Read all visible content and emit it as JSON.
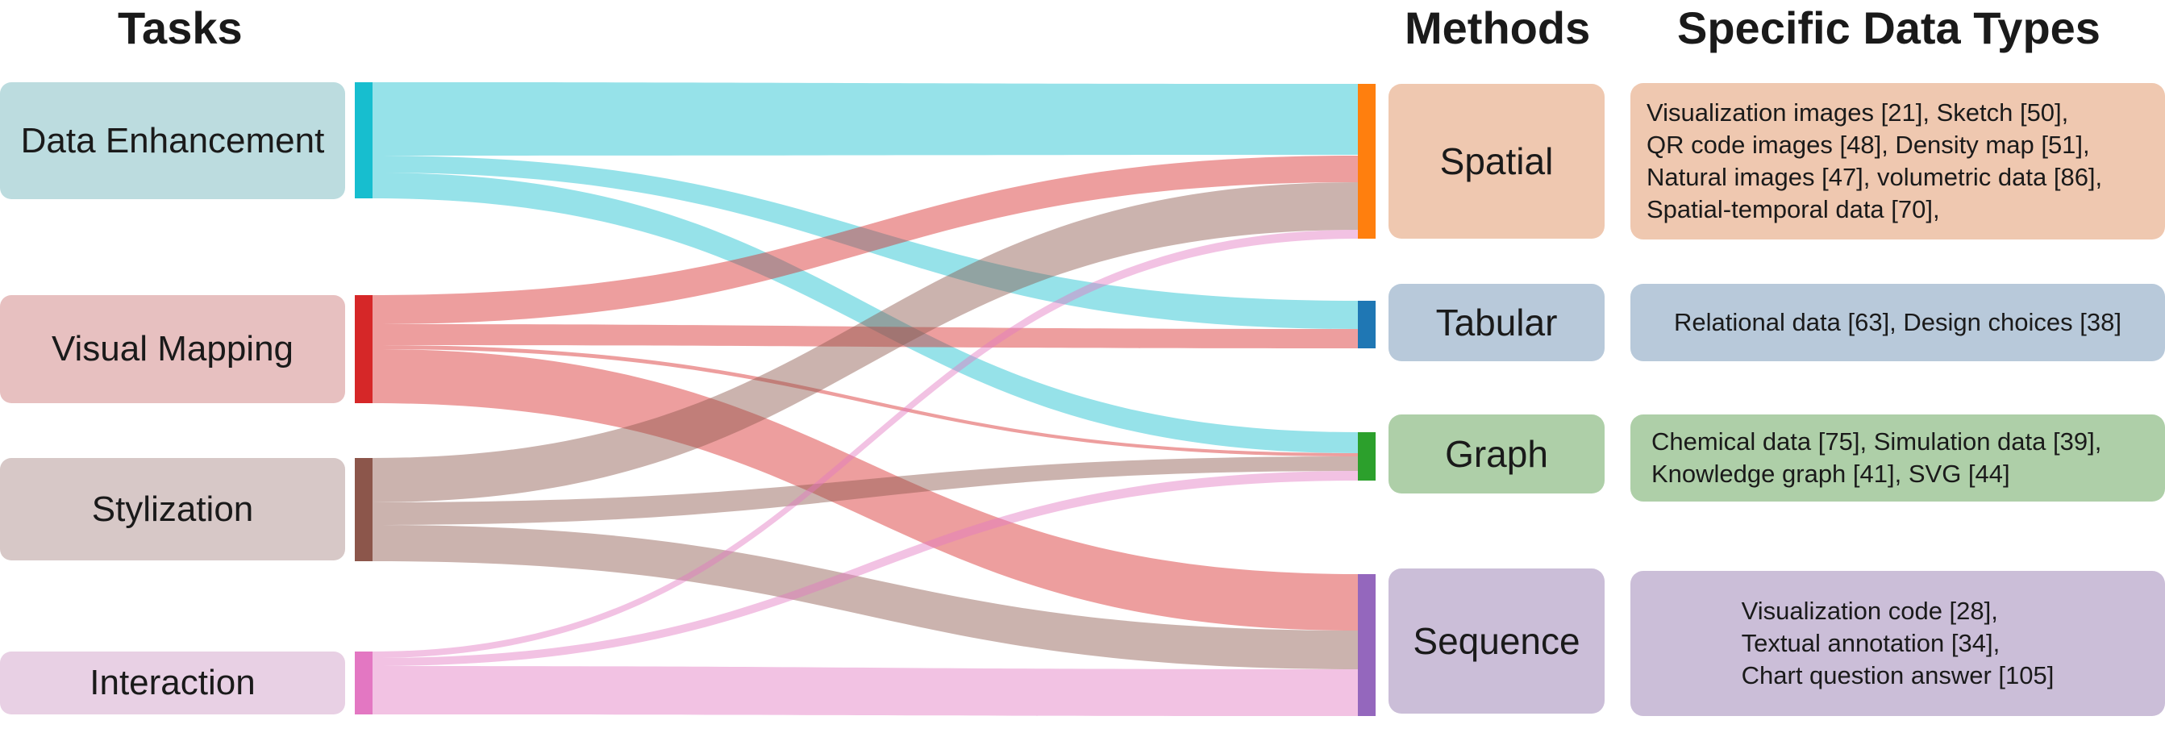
{
  "headers": {
    "tasks": "Tasks",
    "methods": "Methods",
    "data_types": "Specific Data Types"
  },
  "tasks": [
    {
      "id": "enh",
      "label": "Data Enhancement",
      "bar_color": "#17becf",
      "box_color": "#bcdcdf"
    },
    {
      "id": "vis",
      "label": "Visual Mapping",
      "bar_color": "#d62728",
      "box_color": "#e7c0c0"
    },
    {
      "id": "sty",
      "label": "Stylization",
      "bar_color": "#8c564b",
      "box_color": "#d7c8c7"
    },
    {
      "id": "int",
      "label": "Interaction",
      "bar_color": "#e377c2",
      "box_color": "#e8d0e4"
    }
  ],
  "methods": [
    {
      "id": "spa",
      "label": "Spatial",
      "bar_color": "#ff7f0e",
      "box_color": "#efc8b0"
    },
    {
      "id": "tab",
      "label": "Tabular",
      "bar_color": "#1f77b4",
      "box_color": "#b8c9da"
    },
    {
      "id": "gra",
      "label": "Graph",
      "bar_color": "#2ca02c",
      "box_color": "#aecfa8"
    },
    {
      "id": "seq",
      "label": "Sequence",
      "bar_color": "#9467bd",
      "box_color": "#cbbed8"
    }
  ],
  "data_types": [
    {
      "method": "Spatial",
      "lines": [
        "Visualization images [21], Sketch [50],",
        "QR code images [48], Density map [51],",
        "Natural images [47], volumetric data [86],",
        "Spatial-temporal data [70],"
      ]
    },
    {
      "method": "Tabular",
      "lines": [
        "Relational data [63], Design choices [38]"
      ]
    },
    {
      "method": "Graph",
      "lines": [
        "Chemical data [75], Simulation data [39],",
        "Knowledge graph [41], SVG [44]"
      ]
    },
    {
      "method": "Sequence",
      "lines": [
        "Visualization code [28],",
        "Textual annotation [34],",
        "Chart question answer [105]"
      ]
    }
  ],
  "flows": [
    {
      "source": "Data Enhancement",
      "target": "Spatial",
      "color": "#17becf"
    },
    {
      "source": "Data Enhancement",
      "target": "Tabular",
      "color": "#17becf"
    },
    {
      "source": "Data Enhancement",
      "target": "Graph",
      "color": "#17becf"
    },
    {
      "source": "Visual Mapping",
      "target": "Spatial",
      "color": "#d62728"
    },
    {
      "source": "Visual Mapping",
      "target": "Tabular",
      "color": "#d62728"
    },
    {
      "source": "Visual Mapping",
      "target": "Graph",
      "color": "#d62728"
    },
    {
      "source": "Visual Mapping",
      "target": "Sequence",
      "color": "#d62728"
    },
    {
      "source": "Stylization",
      "target": "Spatial",
      "color": "#8c564b"
    },
    {
      "source": "Stylization",
      "target": "Graph",
      "color": "#8c564b"
    },
    {
      "source": "Stylization",
      "target": "Sequence",
      "color": "#8c564b"
    },
    {
      "source": "Interaction",
      "target": "Spatial",
      "color": "#e377c2"
    },
    {
      "source": "Interaction",
      "target": "Graph",
      "color": "#e377c2"
    },
    {
      "source": "Interaction",
      "target": "Sequence",
      "color": "#e377c2"
    }
  ]
}
